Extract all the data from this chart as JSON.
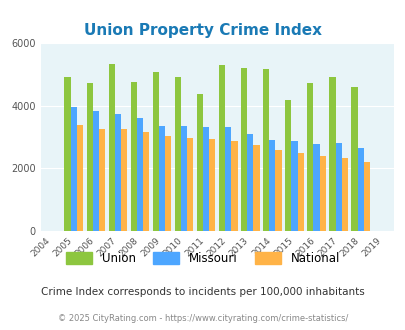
{
  "title": "Union Property Crime Index",
  "years": [
    2004,
    2005,
    2006,
    2007,
    2008,
    2009,
    2010,
    2011,
    2012,
    2013,
    2014,
    2015,
    2016,
    2017,
    2018,
    2019
  ],
  "union": [
    null,
    4900,
    4720,
    5340,
    4750,
    5070,
    4900,
    4380,
    5310,
    5200,
    5180,
    4180,
    4730,
    4900,
    4590,
    null
  ],
  "missouri": [
    null,
    3960,
    3840,
    3740,
    3620,
    3360,
    3360,
    3310,
    3320,
    3090,
    2900,
    2880,
    2770,
    2810,
    2650,
    null
  ],
  "national": [
    null,
    3380,
    3260,
    3240,
    3150,
    3040,
    2960,
    2930,
    2880,
    2730,
    2570,
    2490,
    2400,
    2330,
    2190,
    null
  ],
  "union_color": "#8dc63f",
  "missouri_color": "#4da6ff",
  "national_color": "#ffb347",
  "bg_color": "#e8f4f8",
  "ylim": [
    0,
    6000
  ],
  "yticks": [
    0,
    2000,
    4000,
    6000
  ],
  "subtitle": "Crime Index corresponds to incidents per 100,000 inhabitants",
  "footer": "© 2025 CityRating.com - https://www.cityrating.com/crime-statistics/",
  "title_color": "#1a7ab5",
  "subtitle_color": "#333333",
  "footer_color": "#888888",
  "legend_labels": [
    "Union",
    "Missouri",
    "National"
  ]
}
